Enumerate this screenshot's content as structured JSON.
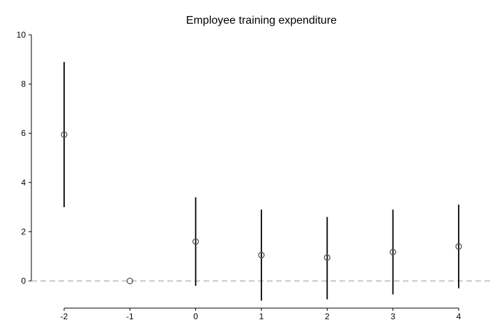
{
  "chart_data": {
    "type": "scatter",
    "title": "Employee training expenditure",
    "xlabel": "",
    "ylabel": "",
    "x": [
      -2,
      -1,
      0,
      1,
      2,
      3,
      4
    ],
    "xticks": [
      "-2",
      "-1",
      "0",
      "1",
      "2",
      "3",
      "4"
    ],
    "series": [
      {
        "estimate": [
          5.95,
          0.0,
          1.6,
          1.05,
          0.95,
          1.17,
          1.4
        ],
        "ci_low": [
          3.0,
          0.0,
          -0.2,
          -0.8,
          -0.75,
          -0.55,
          -0.3
        ],
        "ci_high": [
          8.9,
          0.0,
          3.4,
          2.9,
          2.6,
          2.9,
          3.1
        ]
      }
    ],
    "yticks": [
      "0",
      "2",
      "4",
      "6",
      "8",
      "10"
    ],
    "ylim": [
      -1,
      10
    ],
    "reference_line_y": 0,
    "grid": false,
    "colors": {
      "marker": "#555555",
      "errorbar": "#000000",
      "refline": "#aaaaaa",
      "axis": "#000000"
    }
  }
}
